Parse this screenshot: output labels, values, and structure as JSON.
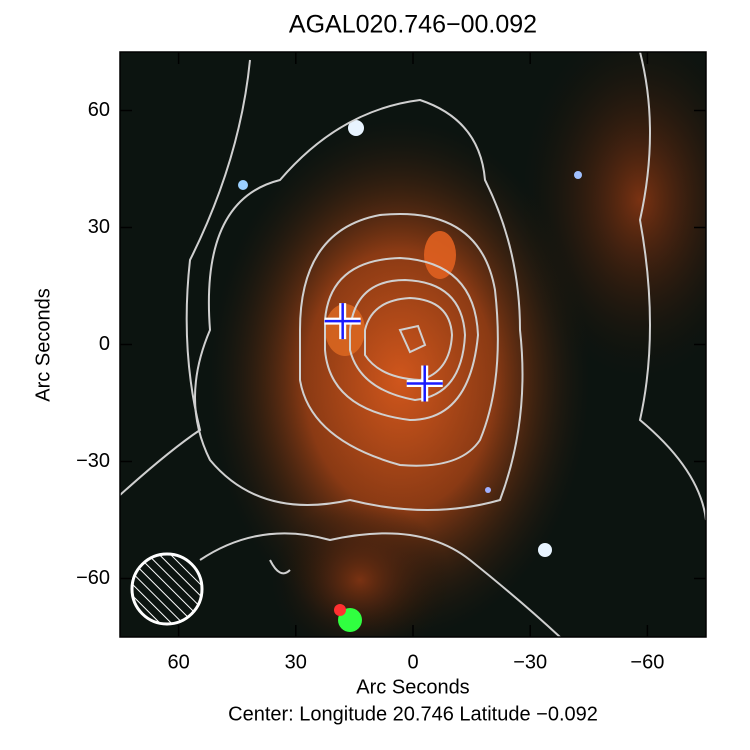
{
  "chart_data": {
    "type": "image",
    "title": "AGAL020.746−00.092",
    "xlabel": "Arc Seconds",
    "ylabel": "Arc Seconds",
    "caption": "Center:  Longitude 20.746 Latitude −0.092",
    "xlim": [
      75,
      -75
    ],
    "ylim": [
      -75,
      75
    ],
    "xticks": [
      60,
      30,
      0,
      {
        "value": -30,
        "label": "−30"
      },
      {
        "value": -60,
        "label": "−60"
      }
    ],
    "yticks": [
      60,
      30,
      0,
      {
        "value": -30,
        "label": "−30"
      },
      {
        "value": -60,
        "label": "−60"
      }
    ],
    "markers": {
      "x": [
        18,
        -3
      ],
      "y": [
        6,
        -10
      ]
    }
  }
}
